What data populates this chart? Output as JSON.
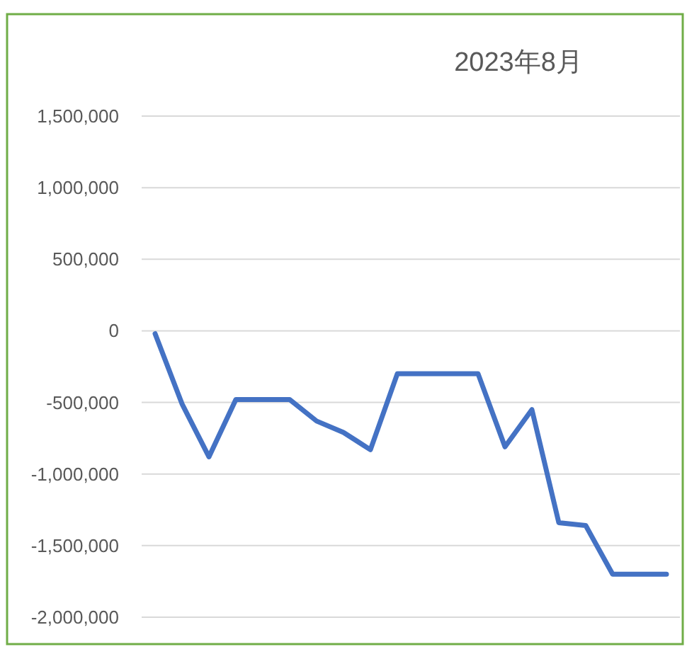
{
  "chart_data": {
    "type": "line",
    "title": "2023年8月",
    "categories": [
      null,
      null,
      null,
      null,
      null,
      null,
      null,
      null,
      null,
      null,
      null,
      null,
      null,
      null,
      null,
      null,
      null,
      null,
      null,
      null
    ],
    "series": [
      {
        "color": "#4472c4",
        "values": [
          -20000,
          -510000,
          -880000,
          -480000,
          -480000,
          -480000,
          -630000,
          -710000,
          -830000,
          -300000,
          -300000,
          -300000,
          -300000,
          -810000,
          -550000,
          -1340000,
          -1360000,
          -1700000,
          -1700000,
          -1700000
        ]
      }
    ],
    "ylim": [
      -2000000,
      1500000
    ],
    "yticks": [
      {
        "value": -2000000,
        "label": "-2,000,000"
      },
      {
        "value": -1500000,
        "label": "-1,500,000"
      },
      {
        "value": -1000000,
        "label": "-1,000,000"
      },
      {
        "value": -500000,
        "label": "-500,000"
      },
      0,
      {
        "value": 500000,
        "label": "500,000"
      },
      {
        "value": 1000000,
        "label": "1,000,000"
      },
      {
        "value": 1500000,
        "label": "1,500,000"
      }
    ],
    "grid": "y",
    "marker": "none",
    "line_style": "solid"
  }
}
